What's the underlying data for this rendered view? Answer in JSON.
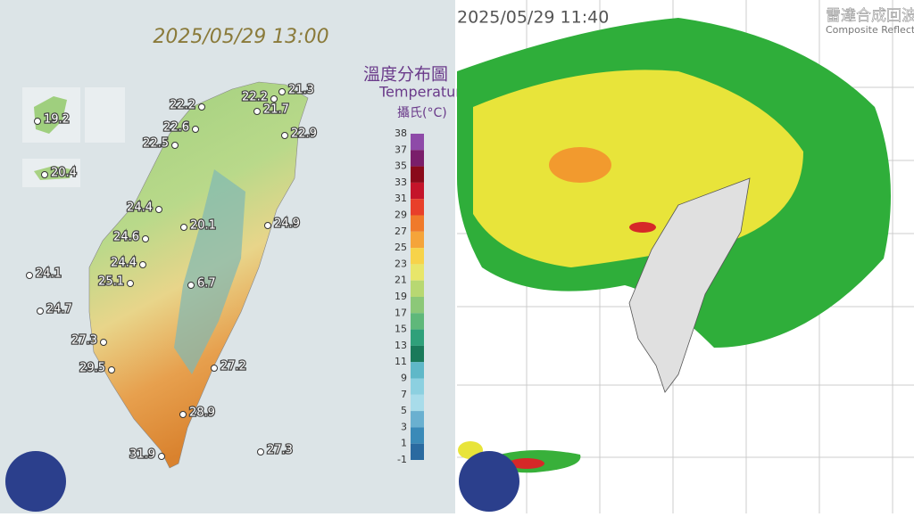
{
  "left_panel": {
    "timestamp": "2025/05/29 13:00",
    "title": "溫度分布圖",
    "subtitle": "Temperature",
    "unit": "攝氏(°C)",
    "scale_labels": [
      38,
      37,
      35,
      33,
      31,
      29,
      27,
      25,
      23,
      21,
      19,
      17,
      15,
      13,
      11,
      9,
      7,
      5,
      3,
      1,
      -1
    ],
    "stations": [
      19.2,
      20.4,
      22.2,
      22.6,
      22.5,
      22.2,
      21.3,
      21.7,
      22.9,
      24.4,
      20.1,
      24.9,
      24.6,
      24.4,
      25.1,
      6.7,
      24.1,
      24.7,
      27.3,
      29.5,
      27.2,
      28.9,
      31.9,
      27.3
    ]
  },
  "right_panel": {
    "timestamp": "2025/05/29 11:40",
    "title": "雷達合成回波",
    "subtitle": "Composite Reflectivity"
  }
}
